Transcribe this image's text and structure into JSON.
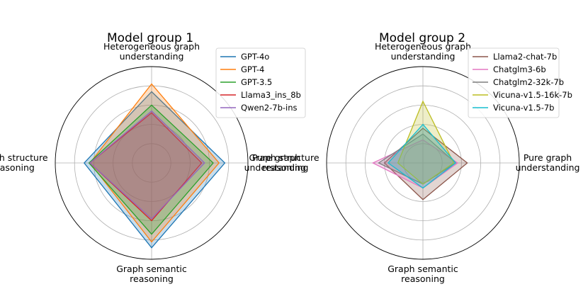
{
  "chart_data": [
    {
      "type": "radar",
      "title": "Model group 1",
      "axes": [
        "Heterogeneous graph understanding",
        "Pure graph understanding",
        "Graph semantic reasoning",
        "Graph structure reasoning"
      ],
      "axis_label_lines": [
        [
          "Heterogeneous graph",
          "understanding"
        ],
        [
          "Pure graph",
          "understanding"
        ],
        [
          "Graph semantic",
          "reasoning"
        ],
        [
          "Graph structure",
          "reasoning"
        ]
      ],
      "rlim": [
        0,
        100
      ],
      "grid": true,
      "legend_position": "top-right",
      "series": [
        {
          "name": "GPT-4o",
          "color": "#1f77b4",
          "values": [
            74,
            76,
            88,
            70
          ]
        },
        {
          "name": "GPT-4",
          "color": "#ff7f0e",
          "values": [
            82,
            70,
            82,
            64
          ]
        },
        {
          "name": "GPT-3.5",
          "color": "#2ca02c",
          "values": [
            60,
            64,
            74,
            65
          ]
        },
        {
          "name": "Llama3_ins_8b",
          "color": "#d62728",
          "values": [
            52,
            52,
            60,
            64
          ]
        },
        {
          "name": "Qwen2-7b-ins",
          "color": "#9467bd",
          "values": [
            54,
            55,
            58,
            64
          ]
        }
      ]
    },
    {
      "type": "radar",
      "title": "Model group 2",
      "axes": [
        "Heterogeneous graph understanding",
        "Pure graph understanding",
        "Graph semantic reasoning",
        "Graph structure reasoning"
      ],
      "axis_label_lines": [
        [
          "Heterogeneous graph",
          "understanding"
        ],
        [
          "Pure graph",
          "understanding"
        ],
        [
          "Graph semantic",
          "reasoning"
        ],
        [
          "Graph structure",
          "reasoning"
        ]
      ],
      "rlim": [
        0,
        100
      ],
      "grid": true,
      "legend_position": "top-right",
      "series": [
        {
          "name": "Llama2-chat-7b",
          "color": "#8c564b",
          "values": [
            36,
            46,
            38,
            40
          ]
        },
        {
          "name": "Chatglm3-6b",
          "color": "#e377c2",
          "values": [
            24,
            36,
            26,
            52
          ]
        },
        {
          "name": "Chatglm2-32k-7b",
          "color": "#7f7f7f",
          "values": [
            30,
            34,
            22,
            46
          ]
        },
        {
          "name": "Vicuna-v1.5-16k-7b",
          "color": "#bcbd22",
          "values": [
            64,
            32,
            22,
            26
          ]
        },
        {
          "name": "Vicuna-v1.5-7b",
          "color": "#17becf",
          "values": [
            40,
            34,
            26,
            36
          ]
        }
      ]
    }
  ]
}
